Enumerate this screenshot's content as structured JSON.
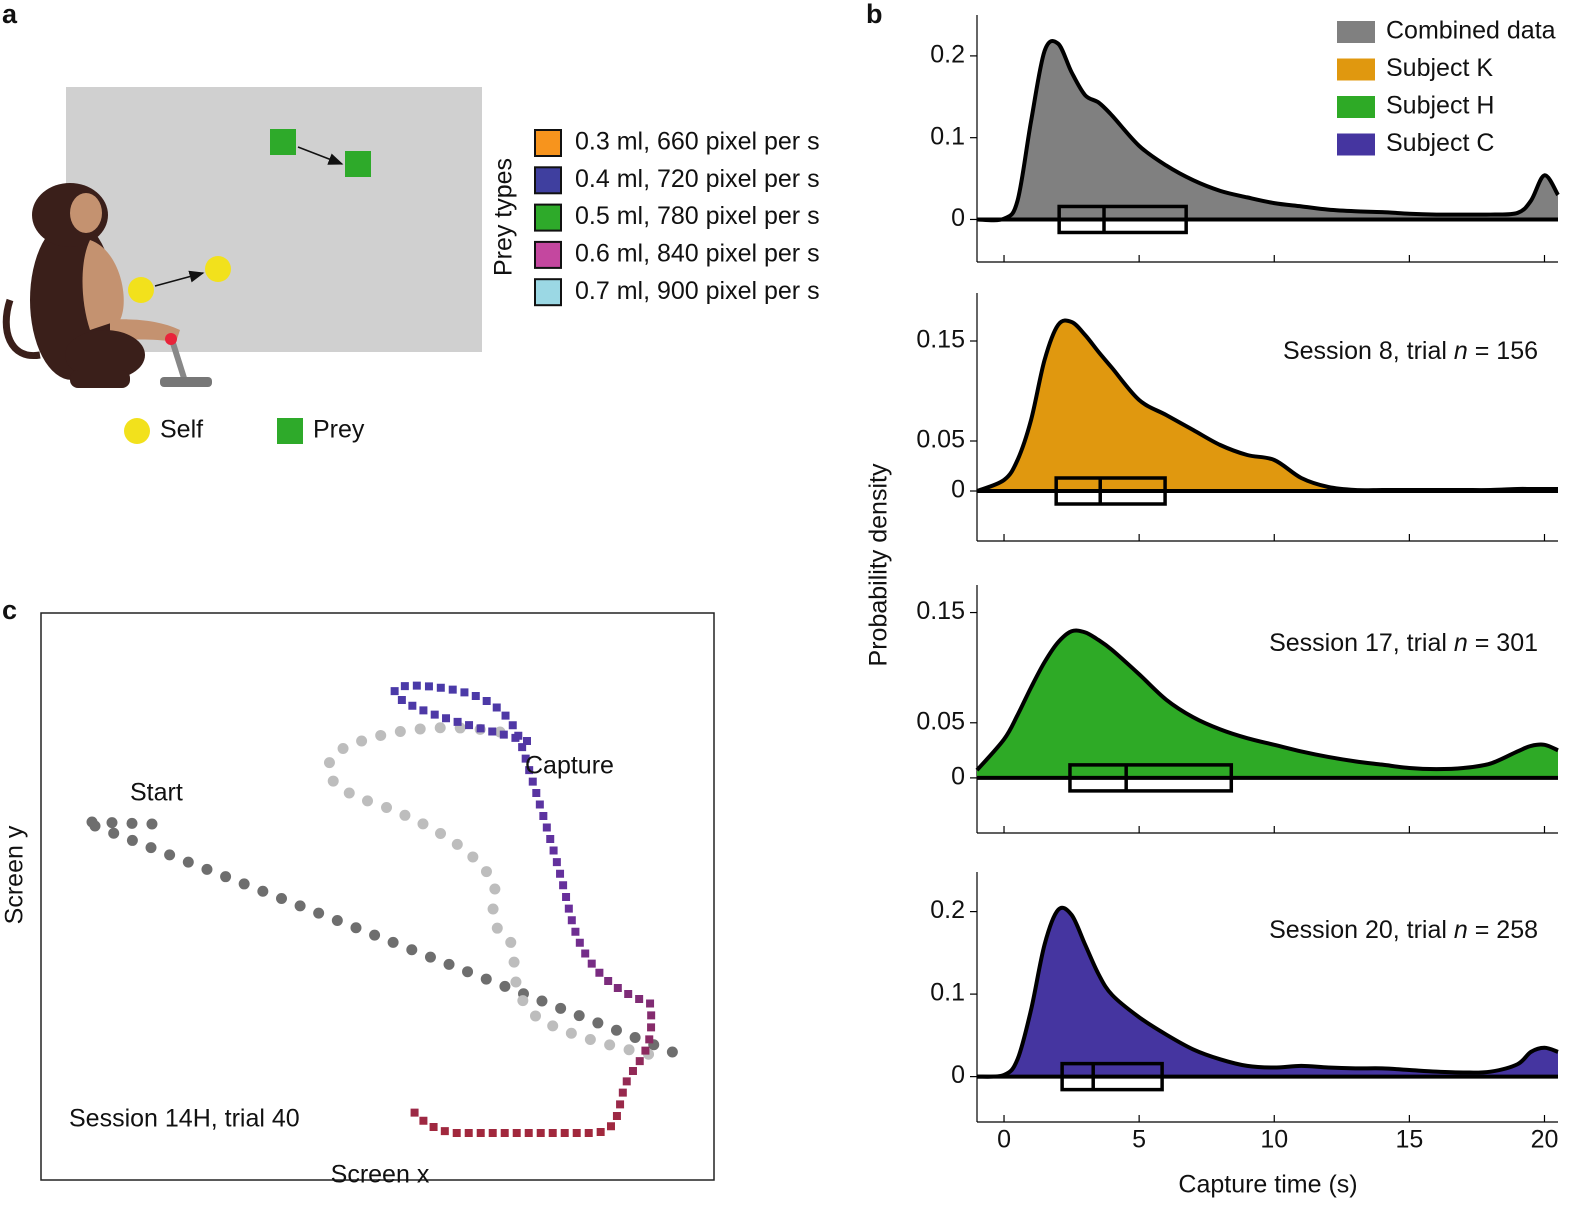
{
  "panel_a": {
    "label": "a",
    "legend_title": "Prey types",
    "self_label": "Self",
    "prey_label": "Prey",
    "prey_types": [
      {
        "label": "0.3 ml, 660 pixel per s",
        "color": "#f7941d"
      },
      {
        "label": "0.4 ml, 720 pixel per s",
        "color": "#3f3f9f"
      },
      {
        "label": "0.5 ml, 780 pixel per s",
        "color": "#2eaa2a"
      },
      {
        "label": "0.6 ml, 840 pixel per s",
        "color": "#c4479f"
      },
      {
        "label": "0.7 ml, 900 pixel per s",
        "color": "#9bd8e4"
      }
    ]
  },
  "panel_b": {
    "label": "b",
    "y_axis_label": "Probability density",
    "x_axis_label": "Capture time (s)"
  },
  "chart_data": [
    {
      "type": "area",
      "xlim": [
        -1,
        20.5
      ],
      "xticks": [
        0,
        5,
        10,
        15,
        20
      ],
      "ylim": [
        -0.052,
        0.25
      ],
      "yticks": [
        0,
        0.1,
        0.2
      ],
      "x": [
        -1,
        0,
        0.5,
        1,
        1.5,
        2,
        2.5,
        3,
        3.5,
        4,
        5,
        6,
        7,
        8,
        9,
        10,
        11,
        12,
        13,
        14,
        15,
        16,
        17,
        18,
        19,
        19.5,
        20,
        20.5
      ],
      "series": [
        {
          "name": "Combined data",
          "color": "#808080",
          "values": [
            0,
            0.001,
            0.023,
            0.12,
            0.206,
            0.215,
            0.18,
            0.152,
            0.143,
            0.127,
            0.09,
            0.066,
            0.048,
            0.035,
            0.027,
            0.02,
            0.016,
            0.012,
            0.01,
            0.009,
            0.007,
            0.006,
            0.006,
            0.006,
            0.008,
            0.023,
            0.054,
            0.03
          ],
          "box": {
            "q1": 2.04,
            "median": 3.7,
            "q3": 6.74
          }
        }
      ]
    },
    {
      "type": "area",
      "xlim": [
        -1,
        20.5
      ],
      "xticks": [
        0,
        5,
        10,
        15,
        20
      ],
      "ylim": [
        -0.05,
        0.198
      ],
      "yticks": [
        0,
        0.05,
        0.15
      ],
      "annotation": [
        "Session 8, trial ",
        "n",
        " = 156"
      ],
      "x": [
        -1,
        0,
        0.5,
        1,
        1.5,
        2,
        2.5,
        3,
        3.5,
        4,
        5,
        6,
        7,
        8,
        9,
        10,
        11,
        12,
        13,
        14,
        15,
        16,
        17,
        18,
        19,
        19.5,
        20,
        20.5
      ],
      "series": [
        {
          "name": "Subject K",
          "color": "#e0980f",
          "values": [
            0,
            0.011,
            0.031,
            0.071,
            0.131,
            0.166,
            0.169,
            0.156,
            0.139,
            0.123,
            0.091,
            0.076,
            0.061,
            0.046,
            0.036,
            0.031,
            0.013,
            0.004,
            0.001,
            0.001,
            0.001,
            0.001,
            0.001,
            0.001,
            0.002,
            0.002,
            0.002,
            0.002
          ],
          "box": {
            "q1": 1.93,
            "median": 3.56,
            "q3": 5.96
          }
        }
      ]
    },
    {
      "type": "area",
      "xlim": [
        -1,
        20.5
      ],
      "xticks": [
        0,
        5,
        10,
        15,
        20
      ],
      "ylim": [
        -0.05,
        0.175
      ],
      "yticks": [
        0,
        0.05,
        0.15
      ],
      "annotation": [
        "Session 17, trial ",
        "n",
        " = 301"
      ],
      "x": [
        -1,
        0,
        0.5,
        1,
        1.5,
        2,
        2.5,
        3,
        3.5,
        4,
        5,
        6,
        7,
        8,
        9,
        10,
        11,
        12,
        13,
        14,
        15,
        16,
        17,
        18,
        19,
        19.5,
        20,
        20.5
      ],
      "series": [
        {
          "name": "Subject H",
          "color": "#2eaa26",
          "values": [
            0.007,
            0.035,
            0.057,
            0.082,
            0.105,
            0.123,
            0.133,
            0.132,
            0.125,
            0.116,
            0.094,
            0.071,
            0.055,
            0.044,
            0.036,
            0.03,
            0.024,
            0.019,
            0.015,
            0.012,
            0.009,
            0.008,
            0.009,
            0.013,
            0.024,
            0.029,
            0.03,
            0.025
          ],
          "box": {
            "q1": 2.44,
            "median": 4.52,
            "q3": 8.41
          }
        }
      ]
    },
    {
      "type": "area",
      "xlim": [
        -1,
        20.5
      ],
      "xticks": [
        0,
        5,
        10,
        15,
        20
      ],
      "ylim": [
        -0.055,
        0.248
      ],
      "yticks": [
        0,
        0.1,
        0.2
      ],
      "annotation": [
        "Session 20, trial ",
        "n",
        " = 258"
      ],
      "x": [
        -1,
        0,
        0.5,
        1,
        1.5,
        2,
        2.5,
        3,
        3.5,
        4,
        5,
        6,
        7,
        8,
        9,
        10,
        11,
        12,
        13,
        14,
        15,
        16,
        17,
        18,
        19,
        19.5,
        20,
        20.5
      ],
      "series": [
        {
          "name": "Subject C",
          "color": "#4535a0",
          "values": [
            0,
            0.002,
            0.021,
            0.081,
            0.16,
            0.202,
            0.196,
            0.16,
            0.124,
            0.099,
            0.072,
            0.051,
            0.033,
            0.021,
            0.013,
            0.011,
            0.013,
            0.011,
            0.01,
            0.01,
            0.008,
            0.006,
            0.005,
            0.006,
            0.015,
            0.03,
            0.035,
            0.03
          ],
          "box": {
            "q1": 2.15,
            "median": 3.3,
            "q3": 5.85
          }
        }
      ]
    }
  ],
  "panel_c": {
    "label": "c",
    "start": "Start",
    "capture": "Capture",
    "session": "Session 14H, trial 40",
    "x_label": "Screen x",
    "y_label": "Screen y"
  }
}
